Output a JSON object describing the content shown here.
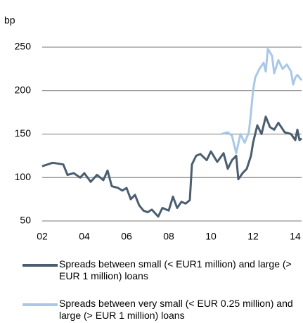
{
  "chart_data": {
    "type": "line",
    "y_label": "bp",
    "xlim": [
      2002,
      2014.3
    ],
    "ylim": [
      50,
      250
    ],
    "xticks": [
      {
        "value": 2002,
        "label": "02"
      },
      {
        "value": 2004,
        "label": "04"
      },
      {
        "value": 2006,
        "label": "06"
      },
      {
        "value": 2008,
        "label": "08"
      },
      {
        "value": 2010,
        "label": "10"
      },
      {
        "value": 2012,
        "label": "12"
      },
      {
        "value": 2014,
        "label": "14"
      }
    ],
    "yticks": [
      50,
      100,
      150,
      200,
      250
    ],
    "grid": true,
    "series": [
      {
        "name": "Spreads between small (< EUR1 million) and large (> EUR 1 million) loans",
        "color": "#4a5e70",
        "x": [
          2002,
          2002.5,
          2003,
          2003.2,
          2003.5,
          2003.8,
          2004,
          2004.3,
          2004.6,
          2004.9,
          2005.1,
          2005.3,
          2005.6,
          2005.8,
          2006,
          2006.2,
          2006.4,
          2006.6,
          2006.8,
          2007,
          2007.2,
          2007.5,
          2007.7,
          2008,
          2008.2,
          2008.4,
          2008.6,
          2008.8,
          2009,
          2009.1,
          2009.3,
          2009.5,
          2009.8,
          2010,
          2010.3,
          2010.6,
          2010.8,
          2011,
          2011.2,
          2011.3,
          2011.5,
          2011.7,
          2011.9,
          2012,
          2012.2,
          2012.4,
          2012.6,
          2012.8,
          2013,
          2013.2,
          2013.5,
          2013.8,
          2014,
          2014.1,
          2014.2,
          2014.3
        ],
        "values": [
          113,
          117,
          115,
          103,
          105,
          100,
          105,
          95,
          103,
          97,
          108,
          90,
          88,
          85,
          88,
          75,
          80,
          68,
          62,
          60,
          63,
          55,
          65,
          62,
          78,
          65,
          72,
          70,
          74,
          115,
          125,
          127,
          120,
          130,
          118,
          128,
          110,
          120,
          125,
          98,
          105,
          110,
          125,
          140,
          160,
          150,
          170,
          158,
          155,
          163,
          152,
          150,
          143,
          155,
          143,
          145
        ]
      },
      {
        "name": "Spreads between very small (< EUR 0.25 million) and large (> EUR 1 million) loans",
        "color": "#a9c8e8",
        "x": [
          2010.5,
          2010.8,
          2011,
          2011.2,
          2011.4,
          2011.6,
          2011.8,
          2011.9,
          2012,
          2012.1,
          2012.3,
          2012.5,
          2012.6,
          2012.7,
          2012.9,
          2013,
          2013.2,
          2013.4,
          2013.6,
          2013.8,
          2013.9,
          2014,
          2014.1,
          2014.3
        ],
        "values": [
          150,
          152,
          148,
          128,
          150,
          140,
          152,
          175,
          200,
          215,
          225,
          232,
          222,
          248,
          240,
          220,
          235,
          225,
          230,
          222,
          207,
          215,
          218,
          212
        ]
      }
    ]
  }
}
